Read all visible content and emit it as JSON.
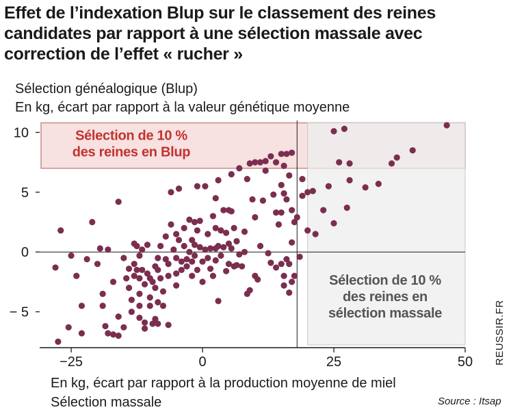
{
  "title": "Effet de l’indexation Blup sur le classement des reines\ncandidates par rapport à une sélection massale avec\ncorrection de l’effet « rucher »",
  "subtitle1": "Sélection généalogique (Blup)",
  "subtitle2": "En kg, écart par rapport à la valeur génétique moyenne",
  "xlabel1": "En kg, écart par rapport à la production moyenne de miel",
  "xlabel2": "Sélection massale",
  "source": "Source : Itsap",
  "credit": "REUSSIR.FR",
  "colors": {
    "points": "#7b2e4f",
    "blup_band": "#f7e1e1",
    "blup_border": "#c98b8b",
    "blup_text": "#c0332f",
    "massale_band": "#eeeeee",
    "massale_text": "#555555"
  },
  "chart_data": {
    "type": "scatter",
    "xlim": [
      -31,
      50
    ],
    "ylim": [
      -8,
      11
    ],
    "xticks": [
      -25,
      0,
      25,
      50
    ],
    "yticks": [
      -5,
      0,
      5,
      10
    ],
    "grid": false,
    "reference_lines": {
      "y": 0,
      "x": 18
    },
    "regions": [
      {
        "label": "Sélection de 10 %\ndes reines en Blup",
        "y_from": 7,
        "y_to": 10.8
      },
      {
        "label": "Sélection de 10 %\ndes reines en\nsélection massale",
        "x_from": 20,
        "x_to": 50
      }
    ],
    "points": [
      [
        -28,
        -1.3
      ],
      [
        -27.5,
        -7.5
      ],
      [
        -27,
        1.8
      ],
      [
        -25.5,
        -6.3
      ],
      [
        -25,
        -0.3
      ],
      [
        -24,
        -2
      ],
      [
        -23,
        -4.5
      ],
      [
        -23,
        -6.8
      ],
      [
        -22,
        -0.6
      ],
      [
        -21,
        2.5
      ],
      [
        -20,
        -1
      ],
      [
        -19.5,
        0.3
      ],
      [
        -19,
        -3.5
      ],
      [
        -19,
        -4.5
      ],
      [
        -18.5,
        -6.2
      ],
      [
        -18,
        0.2
      ],
      [
        -18,
        -6.8
      ],
      [
        -17,
        -6.9
      ],
      [
        -17,
        -2.5
      ],
      [
        -16,
        4.2
      ],
      [
        -16,
        -5.4
      ],
      [
        -16,
        -7
      ],
      [
        -15,
        -0.5
      ],
      [
        -15,
        -6.3
      ],
      [
        -14.5,
        -2.2
      ],
      [
        -14,
        -1.4
      ],
      [
        -14,
        -3
      ],
      [
        -13.5,
        -4
      ],
      [
        -13.5,
        -5
      ],
      [
        -13,
        0.7
      ],
      [
        -13,
        -1
      ],
      [
        -13,
        -2
      ],
      [
        -12.5,
        -1.5
      ],
      [
        -12.5,
        0.5
      ],
      [
        -12,
        -0.3
      ],
      [
        -12,
        -2.2
      ],
      [
        -12,
        -3.5
      ],
      [
        -12,
        -4.5
      ],
      [
        -12,
        -5.5
      ],
      [
        -11.5,
        0.2
      ],
      [
        -11.5,
        -1.5
      ],
      [
        -11,
        -2.7
      ],
      [
        -11,
        -5.9
      ],
      [
        -11,
        -6.4
      ],
      [
        -10.5,
        0.6
      ],
      [
        -10.5,
        -1.8
      ],
      [
        -10,
        -2.2
      ],
      [
        -10,
        -3.8
      ],
      [
        -10,
        -4.5
      ],
      [
        -9.5,
        -2.5
      ],
      [
        -9.5,
        -6
      ],
      [
        -9,
        -1.2
      ],
      [
        -9,
        -3
      ],
      [
        -9,
        -5.6
      ],
      [
        -8.5,
        -0.5
      ],
      [
        -8.5,
        -1.5
      ],
      [
        -8.5,
        -4.2
      ],
      [
        -8.5,
        -6
      ],
      [
        -8,
        0.5
      ],
      [
        -8,
        -2.2
      ],
      [
        -7.5,
        -3.3
      ],
      [
        -7.5,
        -4.5
      ],
      [
        -7,
        1.3
      ],
      [
        -7,
        -0.6
      ],
      [
        -6.5,
        -1
      ],
      [
        -6.5,
        -2
      ],
      [
        -6.5,
        -6.1
      ],
      [
        -6,
        5
      ],
      [
        -6,
        2.3
      ],
      [
        -5.5,
        0.2
      ],
      [
        -5,
        1.5
      ],
      [
        -5,
        -0.5
      ],
      [
        -5,
        -1.8
      ],
      [
        -5,
        -2.8
      ],
      [
        -4.5,
        5.3
      ],
      [
        -4.5,
        1
      ],
      [
        -4,
        -0.8
      ],
      [
        -4,
        -1.5
      ],
      [
        -3.5,
        2
      ],
      [
        -3.5,
        0.5
      ],
      [
        -3,
        -0.6
      ],
      [
        -3,
        -1.2
      ],
      [
        -2.5,
        2.7
      ],
      [
        -2.5,
        0
      ],
      [
        -2,
        1
      ],
      [
        -2,
        -0.8
      ],
      [
        -2,
        -2
      ],
      [
        -1.5,
        2.5
      ],
      [
        -1.5,
        0.6
      ],
      [
        -1.5,
        -0.3
      ],
      [
        -1,
        5.5
      ],
      [
        -1,
        1.8
      ],
      [
        -1,
        -1.5
      ],
      [
        -0.5,
        2.6
      ],
      [
        -0.5,
        0.4
      ],
      [
        0,
        -0.8
      ],
      [
        0,
        -2.5
      ],
      [
        0.5,
        5.5
      ],
      [
        0.5,
        0.2
      ],
      [
        1,
        1.5
      ],
      [
        1,
        -0.5
      ],
      [
        1.5,
        0.3
      ],
      [
        1.5,
        -1.4
      ],
      [
        2,
        3
      ],
      [
        2,
        -2
      ],
      [
        2.5,
        4.5
      ],
      [
        2.5,
        2
      ],
      [
        2.5,
        0.3
      ],
      [
        2.5,
        -0.7
      ],
      [
        3,
        6
      ],
      [
        3,
        0.5
      ],
      [
        3,
        -4.1
      ],
      [
        3.5,
        1.8
      ],
      [
        3.5,
        -0.3
      ],
      [
        4,
        0.4
      ],
      [
        4,
        3.5
      ],
      [
        4.5,
        1.6
      ],
      [
        4.5,
        -1.6
      ],
      [
        5,
        3.5
      ],
      [
        5,
        0.7
      ],
      [
        5,
        -1
      ],
      [
        5.5,
        6.5
      ],
      [
        5.5,
        3.4
      ],
      [
        5.5,
        0.3
      ],
      [
        6,
        2
      ],
      [
        6,
        -1.2
      ],
      [
        6.5,
        0.9
      ],
      [
        6.5,
        -1.1
      ],
      [
        7,
        7
      ],
      [
        7,
        -0.2
      ],
      [
        7.5,
        -1.2
      ],
      [
        8,
        1.7
      ],
      [
        8,
        0
      ],
      [
        8.5,
        6.1
      ],
      [
        8.5,
        -3.5
      ],
      [
        9,
        7.4
      ],
      [
        9,
        -3.2
      ],
      [
        9.5,
        4.4
      ],
      [
        10,
        7.5
      ],
      [
        10,
        2.9
      ],
      [
        10,
        -2
      ],
      [
        10.5,
        -2.3
      ],
      [
        11,
        7.5
      ],
      [
        11,
        0.5
      ],
      [
        11.5,
        4.3
      ],
      [
        12,
        7.6
      ],
      [
        12,
        6.8
      ],
      [
        12.5,
        -0.1
      ],
      [
        13,
        8
      ],
      [
        13,
        -0.9
      ],
      [
        13.5,
        4.8
      ],
      [
        14,
        7.5
      ],
      [
        14,
        3.3
      ],
      [
        14,
        -1.3
      ],
      [
        14.5,
        2.3
      ],
      [
        15,
        8.2
      ],
      [
        15,
        5.6
      ],
      [
        15,
        3.3
      ],
      [
        15,
        -1
      ],
      [
        15.5,
        7.2
      ],
      [
        15.5,
        4.9
      ],
      [
        15.5,
        -2
      ],
      [
        15.5,
        -2.8
      ],
      [
        16,
        8.2
      ],
      [
        16,
        4.4
      ],
      [
        16,
        -0.6
      ],
      [
        16.5,
        6.4
      ],
      [
        16.5,
        -1
      ],
      [
        16.5,
        -3.4
      ],
      [
        17,
        8.3
      ],
      [
        17,
        3.5
      ],
      [
        17,
        0.8
      ],
      [
        17,
        -2.5
      ],
      [
        17.5,
        2.5
      ],
      [
        17.5,
        -2
      ],
      [
        18,
        2.9
      ],
      [
        18.5,
        -0.4
      ],
      [
        19,
        6.1
      ],
      [
        19,
        4.7
      ],
      [
        20,
        5
      ],
      [
        20,
        1.8
      ],
      [
        21,
        5.1
      ],
      [
        21.5,
        1.5
      ],
      [
        23,
        3.5
      ],
      [
        24,
        5.5
      ],
      [
        25,
        2.4
      ],
      [
        25,
        10.1
      ],
      [
        26,
        7.5
      ],
      [
        27,
        10.3
      ],
      [
        27.5,
        3.7
      ],
      [
        28,
        6
      ],
      [
        28,
        7.4
      ],
      [
        31,
        5.4
      ],
      [
        33.5,
        5.7
      ],
      [
        36,
        7.4
      ],
      [
        37,
        7.9
      ],
      [
        40,
        8.5
      ],
      [
        46.5,
        10.6
      ]
    ]
  }
}
